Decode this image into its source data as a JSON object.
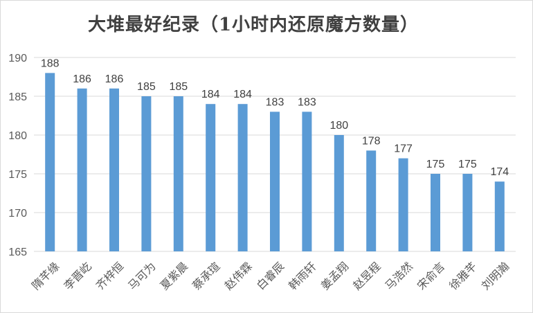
{
  "chart_data": {
    "type": "bar",
    "title": "大堆最好纪录（1小时内还原魔方数量）",
    "categories": [
      "隋芊缘",
      "李晋屹",
      "齐梓恒",
      "马可为",
      "夏紫晨",
      "蔡承瑄",
      "赵伟霖",
      "白睿辰",
      "韩雨轩",
      "姜孟翔",
      "赵昱程",
      "马浩然",
      "宋俞言",
      "徐雅芊",
      "刘明瀚"
    ],
    "values": [
      188,
      186,
      186,
      185,
      185,
      184,
      184,
      183,
      183,
      180,
      178,
      177,
      175,
      175,
      174
    ],
    "ylim": [
      165,
      190
    ],
    "yticks": [
      165,
      170,
      175,
      180,
      185,
      190
    ],
    "xlabel": "",
    "ylabel": "",
    "grid": true,
    "bar_color": "#5b9bd5",
    "grid_color": "#d9d9d9"
  }
}
